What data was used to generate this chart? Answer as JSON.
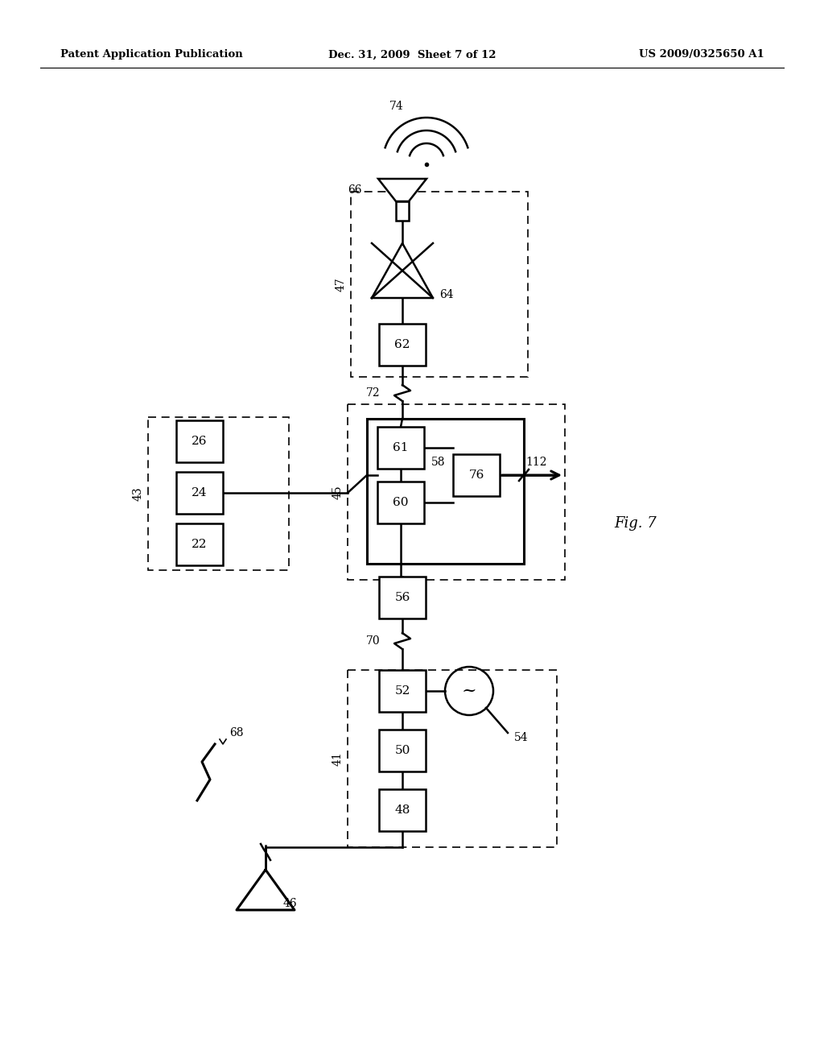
{
  "title_left": "Patent Application Publication",
  "title_center": "Dec. 31, 2009  Sheet 7 of 12",
  "title_right": "US 2009/0325650 A1",
  "fig_label": "Fig. 7",
  "background": "#ffffff",
  "line_color": "#000000"
}
